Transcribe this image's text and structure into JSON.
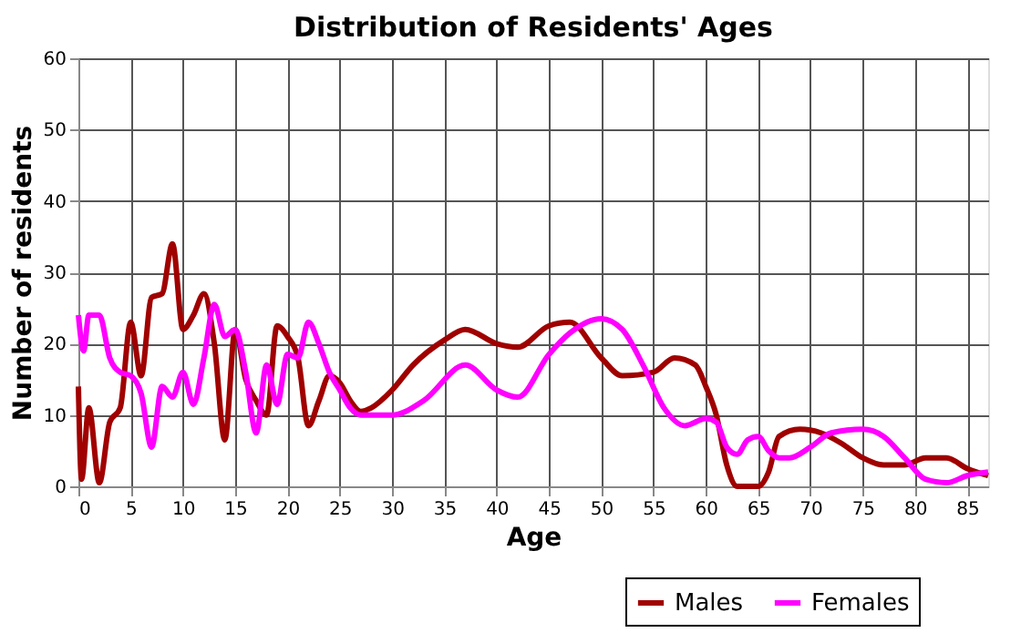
{
  "chart_data": {
    "type": "line",
    "title": "Distribution of Residents' Ages",
    "xlabel": "Age",
    "ylabel": "Number of residents",
    "xlim": [
      0,
      87
    ],
    "xticks": [
      0,
      5,
      10,
      15,
      20,
      25,
      30,
      35,
      40,
      45,
      50,
      55,
      60,
      65,
      70,
      75,
      80,
      85
    ],
    "ylim": [
      0,
      60
    ],
    "yticks": [
      0,
      10,
      20,
      30,
      40,
      50,
      60
    ],
    "grid": true,
    "legend": "bottom right",
    "series": [
      {
        "name": "Males",
        "color": "#a00000",
        "x": [
          0,
          0.3,
          1,
          2,
          3,
          4,
          5,
          6,
          7,
          8,
          9,
          10,
          11,
          12,
          13,
          14,
          15,
          16,
          17,
          18,
          19,
          20,
          21,
          22,
          23,
          24,
          25,
          26,
          27,
          28,
          30,
          32,
          35,
          37,
          40,
          42,
          45,
          47,
          50,
          52,
          55,
          57,
          59,
          60,
          61,
          62,
          63,
          64,
          65,
          66,
          67,
          69,
          71,
          73,
          75,
          77,
          79,
          81,
          83,
          85,
          87
        ],
        "values": [
          14,
          1,
          11,
          0.5,
          9,
          11,
          23,
          15.5,
          26.5,
          27,
          34,
          22,
          24,
          27,
          20,
          6.5,
          22,
          15,
          12,
          10,
          22.5,
          21,
          18,
          8.5,
          12,
          15.5,
          14.5,
          12,
          10.5,
          11,
          13.5,
          17,
          20.5,
          22,
          20,
          19.5,
          22.5,
          23,
          18,
          15.5,
          16,
          18,
          17,
          14,
          10,
          3,
          0,
          0,
          0,
          2,
          7,
          8,
          7.5,
          6,
          4,
          3,
          3,
          4,
          4,
          2.5,
          1.5
        ]
      },
      {
        "name": "Females",
        "color": "#ff00ff",
        "x": [
          0,
          0.5,
          1,
          2,
          3,
          4,
          5,
          6,
          7,
          8,
          9,
          10,
          11,
          12,
          13,
          14,
          15,
          16,
          17,
          18,
          19,
          20,
          21,
          22,
          23,
          24,
          25,
          26,
          27,
          30,
          33,
          37,
          40,
          42,
          45,
          47,
          50,
          52,
          54,
          56,
          58,
          60,
          61,
          62,
          63,
          64,
          65,
          66,
          67,
          68,
          70,
          72,
          75,
          77,
          79,
          81,
          83,
          85,
          87
        ],
        "values": [
          24,
          19,
          24,
          24,
          18,
          16,
          15.5,
          13,
          5.5,
          14,
          12.5,
          16,
          11.5,
          18,
          25.5,
          21,
          22,
          16,
          7.5,
          17,
          11.5,
          18.5,
          18,
          23,
          20,
          16,
          13.5,
          11,
          10,
          10,
          12,
          17,
          13.5,
          12.5,
          18.5,
          21.5,
          23.5,
          22,
          17,
          11,
          8.5,
          9.5,
          9,
          5.5,
          4.5,
          6.5,
          7,
          5,
          4,
          4,
          5.5,
          7.5,
          8,
          7,
          4,
          1,
          0.5,
          1.5,
          2
        ]
      }
    ]
  }
}
